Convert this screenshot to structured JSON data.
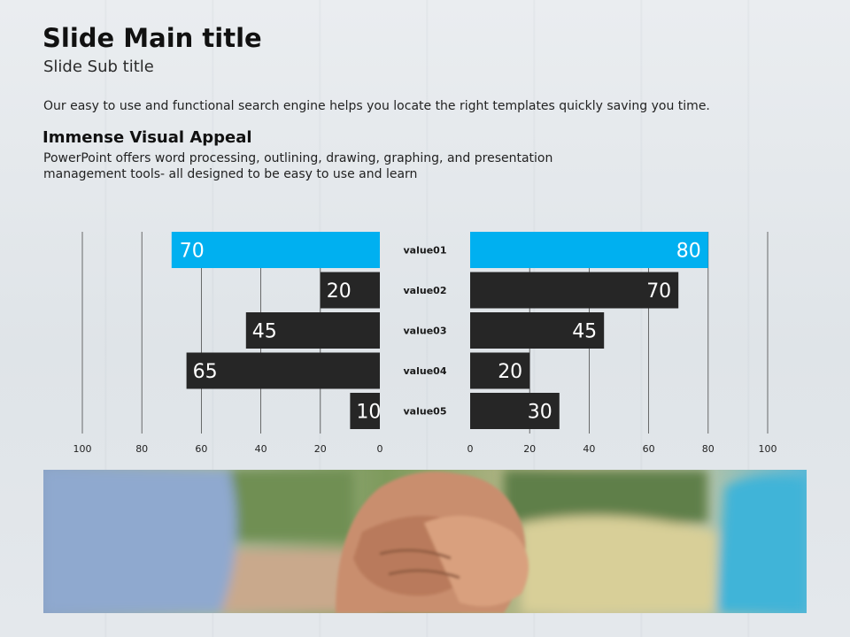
{
  "slide": {
    "title": "Slide Main title",
    "subtitle": "Slide Sub title",
    "intro": "Our easy to use and functional search engine helps you locate the right templates quickly saving you time.",
    "section_heading": "Immense Visual Appeal",
    "section_body": "PowerPoint offers word processing, outlining, drawing, graphing, and presentation management tools- all designed to be easy to use and learn"
  },
  "colors": {
    "highlight": "#00b0f0",
    "bar": "#262626",
    "axis_text": "#222222"
  },
  "chart_data": {
    "type": "bar",
    "orientation": "horizontal-butterfly",
    "categories": [
      "value01",
      "value02",
      "value03",
      "value04",
      "value05"
    ],
    "series": [
      {
        "side": "left",
        "values": [
          70,
          20,
          45,
          65,
          10
        ]
      },
      {
        "side": "right",
        "values": [
          80,
          70,
          45,
          20,
          30
        ]
      }
    ],
    "xlim": [
      0,
      100
    ],
    "ticks": [
      0,
      20,
      40,
      60,
      80,
      100
    ],
    "highlight_category": "value01",
    "grid": true
  },
  "photo": {
    "description": "icon:holding-hands-photo"
  }
}
